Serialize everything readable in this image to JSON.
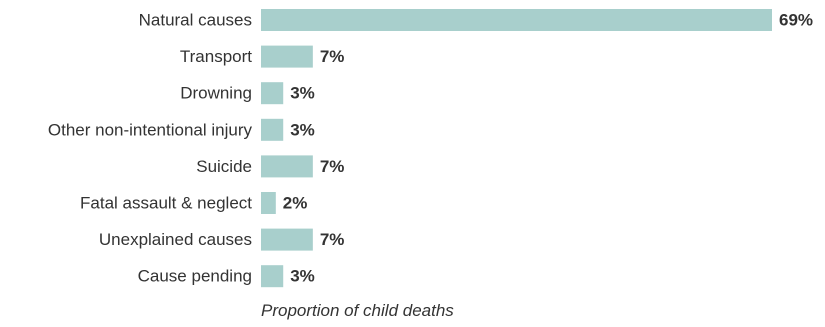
{
  "colors": {
    "bar": "#a8cfcc",
    "text": "#333333",
    "background": "#ffffff"
  },
  "chart_data": {
    "type": "bar",
    "orientation": "horizontal",
    "title": "",
    "xlabel": "Proportion of child deaths",
    "ylabel": "",
    "categories": [
      "Natural causes",
      "Transport",
      "Drowning",
      "Other non-intentional injury",
      "Suicide",
      "Fatal assault & neglect",
      "Unexplained causes",
      "Cause pending"
    ],
    "values": [
      69,
      7,
      3,
      3,
      7,
      2,
      7,
      3
    ],
    "value_labels": [
      "69%",
      "7%",
      "3%",
      "3%",
      "7%",
      "2%",
      "7%",
      "3%"
    ],
    "unit": "%",
    "xlim": [
      0,
      69
    ],
    "grid": false,
    "legend": "none"
  }
}
